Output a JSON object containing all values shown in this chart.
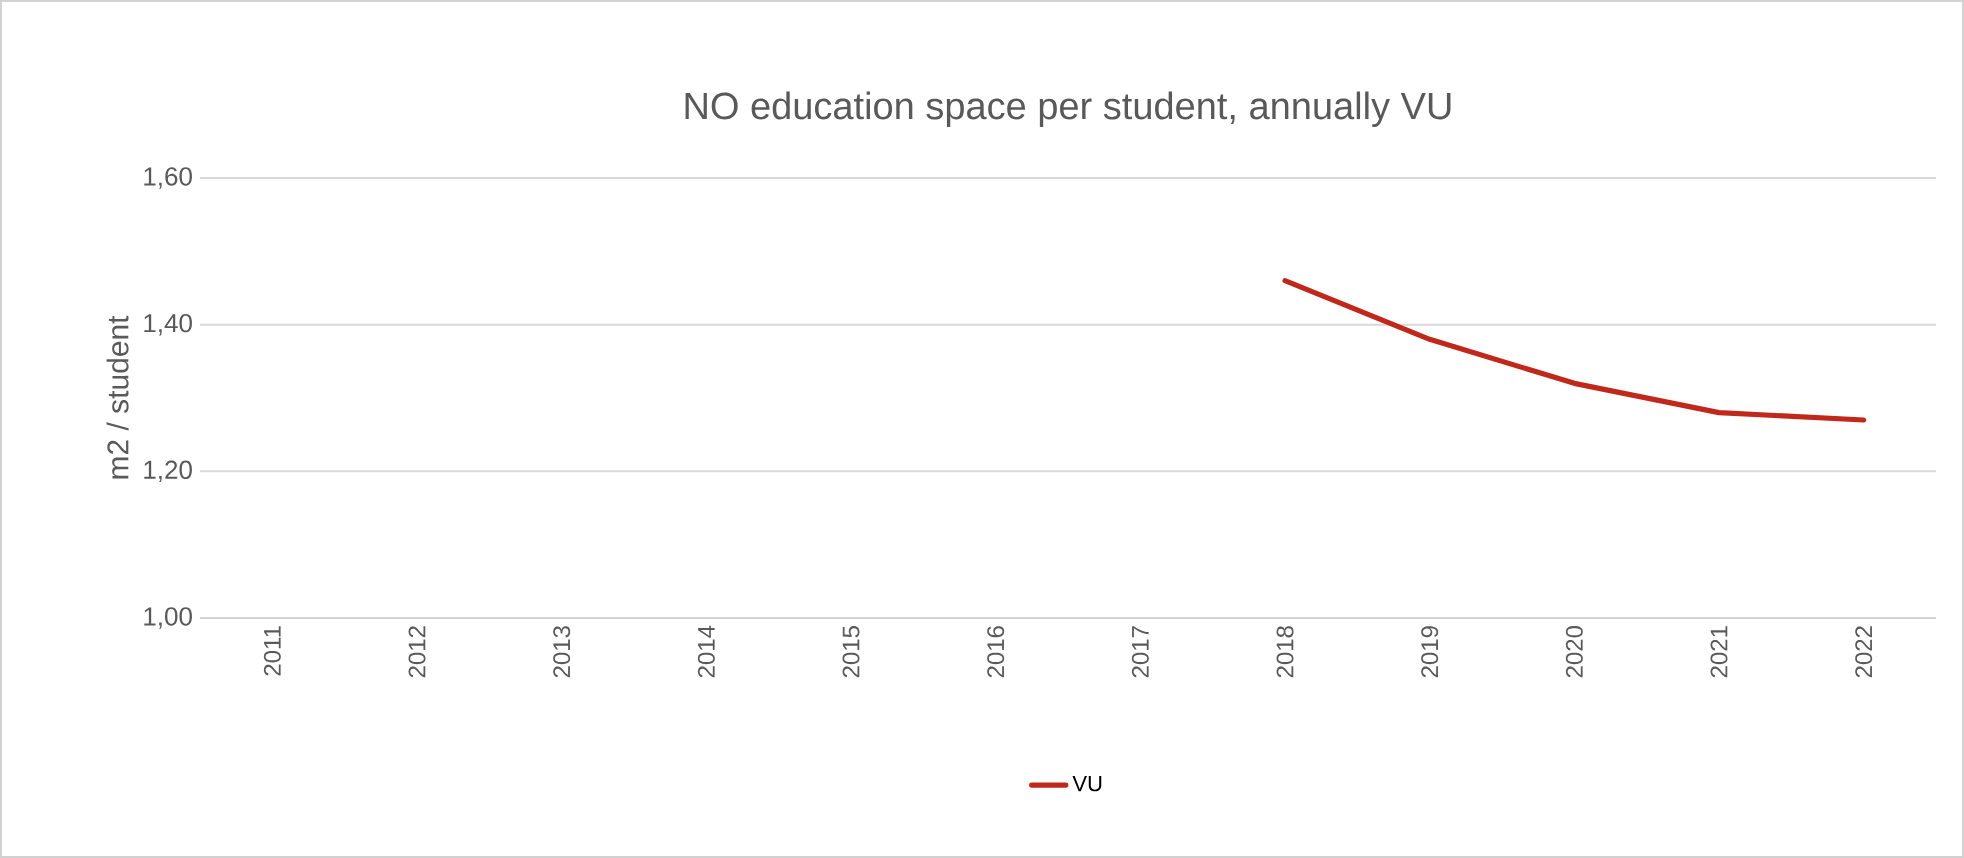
{
  "chart_data": {
    "type": "line",
    "title": "NO education space per student, annually VU",
    "ylabel": "m2 / student",
    "categories": [
      "2011",
      "2012",
      "2013",
      "2014",
      "2015",
      "2016",
      "2017",
      "2018",
      "2019",
      "2020",
      "2021",
      "2022"
    ],
    "series": [
      {
        "name": "VU",
        "color": "#c0281c",
        "values": [
          null,
          null,
          null,
          null,
          null,
          null,
          null,
          1.46,
          1.38,
          1.32,
          1.28,
          1.27
        ]
      }
    ],
    "ylim": [
      1.0,
      1.6
    ],
    "yticks": [
      {
        "value": 1.0,
        "label": "1,00"
      },
      {
        "value": 1.2,
        "label": "1,20"
      },
      {
        "value": 1.4,
        "label": "1,40"
      },
      {
        "value": 1.6,
        "label": "1,60"
      }
    ],
    "grid": "y",
    "legend": "bottom",
    "marker": "none",
    "line_style": "solid"
  }
}
